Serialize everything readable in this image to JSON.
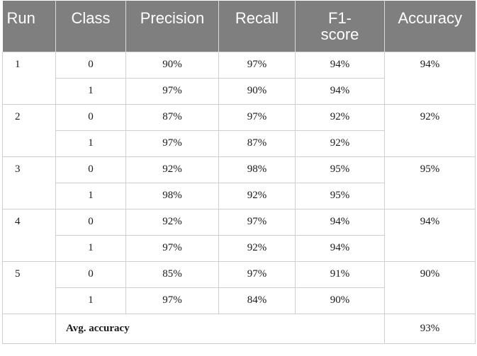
{
  "table": {
    "headers": {
      "run": "Run",
      "class": "Class",
      "precision": "Precision",
      "recall": "Recall",
      "f1": "F1-\nscore",
      "f1_line1": "F1-",
      "f1_line2": "score",
      "accuracy": "Accuracy"
    },
    "runs": [
      {
        "run": "1",
        "accuracy": "94%",
        "rows": [
          {
            "class": "0",
            "precision": "90%",
            "recall": "97%",
            "f1": "94%"
          },
          {
            "class": "1",
            "precision": "97%",
            "recall": "90%",
            "f1": "94%"
          }
        ]
      },
      {
        "run": "2",
        "accuracy": "92%",
        "rows": [
          {
            "class": "0",
            "precision": "87%",
            "recall": "97%",
            "f1": "92%"
          },
          {
            "class": "1",
            "precision": "97%",
            "recall": "87%",
            "f1": "92%"
          }
        ]
      },
      {
        "run": "3",
        "accuracy": "95%",
        "rows": [
          {
            "class": "0",
            "precision": "92%",
            "recall": "98%",
            "f1": "95%"
          },
          {
            "class": "1",
            "precision": "98%",
            "recall": "92%",
            "f1": "95%"
          }
        ]
      },
      {
        "run": "4",
        "accuracy": "94%",
        "rows": [
          {
            "class": "0",
            "precision": "92%",
            "recall": "97%",
            "f1": "94%"
          },
          {
            "class": "1",
            "precision": "97%",
            "recall": "92%",
            "f1": "94%"
          }
        ]
      },
      {
        "run": "5",
        "accuracy": "90%",
        "rows": [
          {
            "class": "0",
            "precision": "85%",
            "recall": "97%",
            "f1": "91%"
          },
          {
            "class": "1",
            "precision": "97%",
            "recall": "84%",
            "f1": "90%"
          }
        ]
      }
    ],
    "footer": {
      "label": "Avg. accuracy",
      "value": "93%"
    }
  },
  "colors": {
    "header_bg": "#7f7f7f",
    "header_text": "#ffffff",
    "grid": "#cfcfcf"
  }
}
